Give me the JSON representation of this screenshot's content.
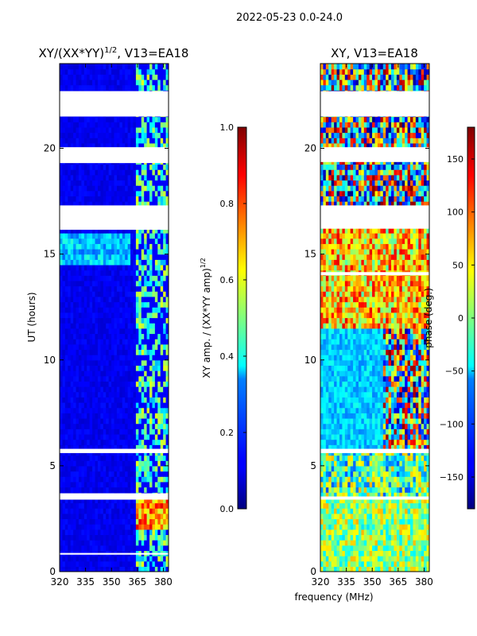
{
  "figure_title": "2022-05-23 0.0-24.0",
  "chart_data": [
    {
      "type": "heatmap",
      "title": "XY/(XX*YY)^{1/2}, V13=EA18",
      "title_main": "XY/(XX*YY)",
      "title_exp": "1/2",
      "title_tail": ", V13=EA18",
      "xlabel": "",
      "ylabel": "UT (hours)",
      "xlim": [
        320,
        383
      ],
      "ylim": [
        0,
        24
      ],
      "xticks": [
        320,
        335,
        350,
        365,
        380
      ],
      "yticks": [
        0,
        5,
        10,
        15,
        20
      ],
      "flag_gaps_hours": [
        [
          0.8,
          0.88
        ],
        [
          3.4,
          3.7
        ],
        [
          5.6,
          5.8
        ],
        [
          16.15,
          17.3
        ],
        [
          19.3,
          20.05
        ],
        [
          21.5,
          22.7
        ]
      ],
      "colorbar": {
        "label": "XY amp. / (XX*YY amp)^{1/2}",
        "label_main": "XY amp. / (XX*YY amp)",
        "label_exp": "1/2",
        "range": [
          0.0,
          1.0
        ],
        "ticks": [
          "0.0",
          "0.2",
          "0.4",
          "0.6",
          "0.8",
          "1.0"
        ],
        "tick_values": [
          0.0,
          0.2,
          0.4,
          0.6,
          0.8,
          1.0
        ],
        "colormap": "jet"
      }
    },
    {
      "type": "heatmap",
      "title": "XY, V13=EA18",
      "xlabel": "frequency (MHz)",
      "ylabel": "",
      "xlim": [
        320,
        383
      ],
      "ylim": [
        0,
        24
      ],
      "xticks": [
        320,
        335,
        350,
        365,
        380
      ],
      "yticks": [
        0,
        5,
        10,
        15,
        20
      ],
      "flag_gaps_hours": [
        [
          3.4,
          3.55
        ],
        [
          5.6,
          5.8
        ],
        [
          14.0,
          14.15
        ],
        [
          16.2,
          17.3
        ],
        [
          19.35,
          20.05
        ],
        [
          21.5,
          22.7
        ]
      ],
      "colorbar": {
        "label": "phase (deg.)",
        "range": [
          -180,
          180
        ],
        "ticks": [
          "−150",
          "−100",
          "−50",
          "0",
          "50",
          "100",
          "150"
        ],
        "tick_values": [
          -150,
          -100,
          -50,
          0,
          50,
          100,
          150
        ],
        "colormap": "jet"
      }
    }
  ]
}
